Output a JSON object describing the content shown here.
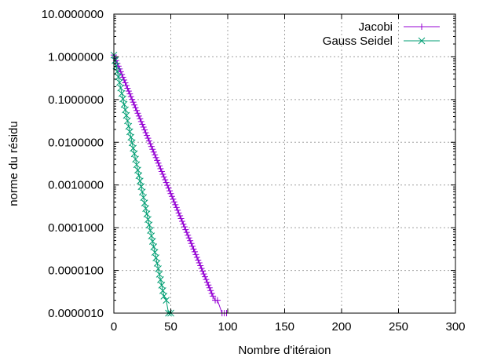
{
  "chart_data": {
    "type": "line",
    "title": "",
    "xlabel": "Nombre d'itéraion",
    "ylabel": "norme du résidu",
    "xlim": [
      0,
      300
    ],
    "ylim": [
      1e-06,
      10
    ],
    "yscale": "log",
    "grid": true,
    "legend_position": "top-right",
    "x_ticks": [
      0,
      50,
      100,
      150,
      200,
      250,
      300
    ],
    "x_tick_labels": [
      "0",
      "50",
      "100",
      "150",
      "200",
      "250",
      "300"
    ],
    "y_ticks": [
      1e-06,
      1e-05,
      0.0001,
      0.001,
      0.01,
      0.1,
      1,
      10
    ],
    "y_tick_labels": [
      "0.0000010",
      "0.0000100",
      "0.0001000",
      "0.0010000",
      "0.0100000",
      "0.1000000",
      "1.0000000",
      "10.0000000"
    ],
    "series": [
      {
        "name": "Jacobi",
        "color": "#9400d3",
        "marker": "plus",
        "start": [
          0,
          1.1
        ],
        "end": [
          87,
          2.5e-06
        ],
        "points_after_end": [
          [
            89,
            2e-06
          ],
          [
            91,
            2e-06
          ],
          [
            95,
            1e-06
          ],
          [
            97,
            1e-06
          ],
          [
            99,
            1e-06
          ]
        ]
      },
      {
        "name": "Gauss Seidel",
        "color": "#009e73",
        "marker": "x",
        "start": [
          0,
          1.1
        ],
        "end": [
          44,
          2.5e-06
        ],
        "points_after_end": [
          [
            46,
            2e-06
          ],
          [
            48,
            1e-06
          ],
          [
            50,
            1e-06
          ]
        ]
      }
    ]
  }
}
